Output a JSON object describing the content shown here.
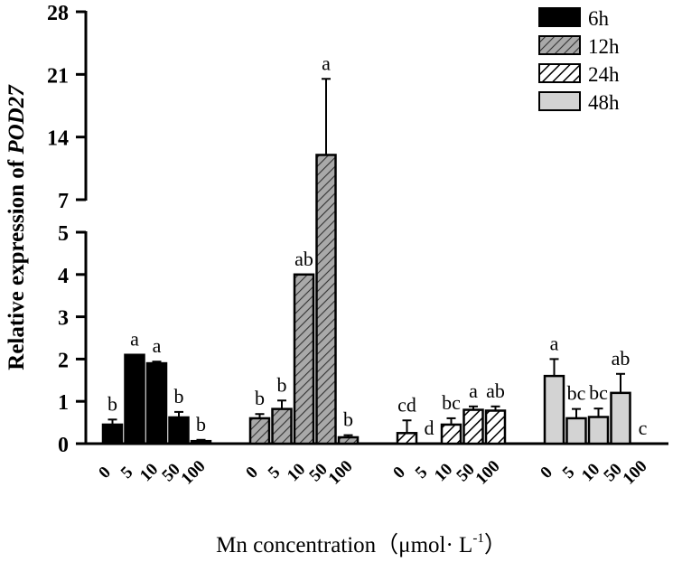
{
  "chart_data": {
    "type": "bar",
    "title": "",
    "xlabel": "Mn concentration（μmol· L",
    "xlabel_sup": "-1",
    "xlabel_close": "）",
    "ylabel_prefix": "Relative expression of ",
    "ylabel_gene": "POD27",
    "y_axis_broken": true,
    "ylim_lower": [
      0,
      5
    ],
    "ylim_upper": [
      7,
      28
    ],
    "yticks_lower": [
      "0",
      "1",
      "2",
      "3",
      "4",
      "5"
    ],
    "yticks_upper": [
      "7",
      "14",
      "21",
      "28"
    ],
    "categories": [
      "0",
      "5",
      "10",
      "50",
      "100"
    ],
    "series": [
      {
        "name": "6h",
        "pattern": "solid-black",
        "values": [
          0.45,
          2.1,
          1.9,
          0.62,
          0.06
        ],
        "errors": [
          0.12,
          0.0,
          0.04,
          0.13,
          0.03
        ],
        "labels": [
          "b",
          "a",
          "a",
          "b",
          "b"
        ]
      },
      {
        "name": "12h",
        "pattern": "hatch-gray",
        "values": [
          0.6,
          0.82,
          4.0,
          12.0,
          0.15
        ],
        "errors": [
          0.1,
          0.2,
          0.0,
          8.5,
          0.05
        ],
        "labels": [
          "b",
          "b",
          "ab",
          "a",
          "b"
        ]
      },
      {
        "name": "24h",
        "pattern": "hatch-white",
        "values": [
          0.25,
          0.0,
          0.45,
          0.8,
          0.78
        ],
        "errors": [
          0.3,
          0.0,
          0.15,
          0.08,
          0.1
        ],
        "labels": [
          "cd",
          "d",
          "bc",
          "a",
          "ab"
        ]
      },
      {
        "name": "48h",
        "pattern": "solid-lightgray",
        "values": [
          1.6,
          0.6,
          0.63,
          1.2,
          0.0
        ],
        "errors": [
          0.4,
          0.22,
          0.2,
          0.45,
          0.0
        ],
        "labels": [
          "a",
          "bc",
          "bc",
          "ab",
          "c"
        ]
      }
    ],
    "legend_position": "top-right"
  }
}
